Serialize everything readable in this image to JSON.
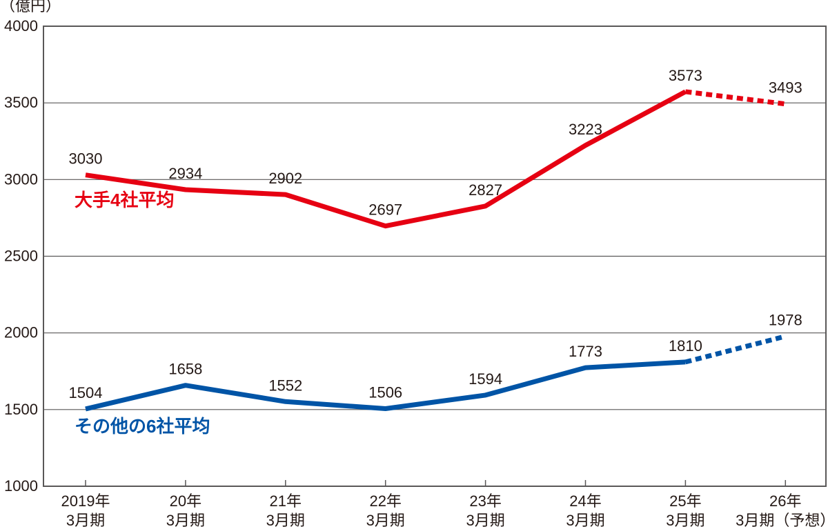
{
  "chart_data": {
    "type": "line",
    "ylabel": "（億円）",
    "ylim": [
      1000,
      4000
    ],
    "yticks": [
      1000,
      1500,
      2000,
      2500,
      3000,
      3500,
      4000
    ],
    "grid": true,
    "categories": [
      [
        "2019年",
        "3月期"
      ],
      [
        "20年",
        "3月期"
      ],
      [
        "21年",
        "3月期"
      ],
      [
        "22年",
        "3月期"
      ],
      [
        "23年",
        "3月期"
      ],
      [
        "24年",
        "3月期"
      ],
      [
        "25年",
        "3月期"
      ],
      [
        "26年",
        "3月期（予想）"
      ]
    ],
    "series": [
      {
        "name": "大手4社平均",
        "color": "#e60012",
        "values": [
          3030,
          2934,
          2902,
          2697,
          2827,
          3223,
          3573,
          3493
        ],
        "forecast_from_index": 6
      },
      {
        "name": "その他の6社平均",
        "color": "#0054a6",
        "values": [
          1504,
          1658,
          1552,
          1506,
          1594,
          1773,
          1810,
          1978
        ],
        "forecast_from_index": 6
      }
    ]
  }
}
